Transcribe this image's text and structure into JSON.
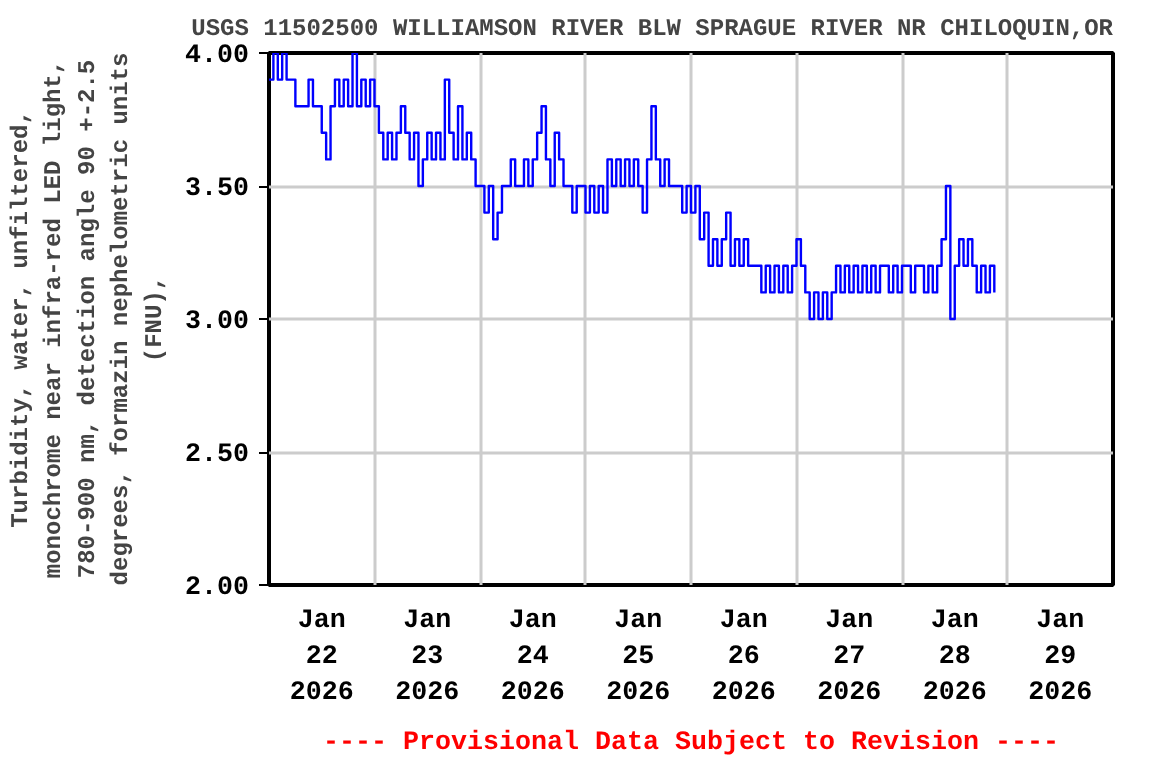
{
  "chart_data": {
    "type": "step",
    "title": "USGS 11502500 WILLIAMSON RIVER BLW SPRAGUE RIVER NR CHILOQUIN,OR",
    "ylabel": "Turbidity, water, unfiltered,\nmonochrome near infra-red LED light,\n780-900 nm, detection angle 90 +-2.5\ndegrees, formazin nephelometric units\n(FNU),",
    "annotations": [
      "---- Provisional Data Subject to Revision ----"
    ],
    "xlim": [
      "2026-01-22T00:00",
      "2026-01-30T00:00"
    ],
    "xticks": [
      {
        "value": "2026-01-22T00:00",
        "label": null
      },
      {
        "value": "2026-01-22T12:00",
        "label": "Jan\n22\n2026"
      },
      {
        "value": "2026-01-23T00:00",
        "label": null
      },
      {
        "value": "2026-01-23T12:00",
        "label": "Jan\n23\n2026"
      },
      {
        "value": "2026-01-24T00:00",
        "label": null
      },
      {
        "value": "2026-01-24T12:00",
        "label": "Jan\n24\n2026"
      },
      {
        "value": "2026-01-25T00:00",
        "label": null
      },
      {
        "value": "2026-01-25T12:00",
        "label": "Jan\n25\n2026"
      },
      {
        "value": "2026-01-26T00:00",
        "label": null
      },
      {
        "value": "2026-01-26T12:00",
        "label": "Jan\n26\n2026"
      },
      {
        "value": "2026-01-27T00:00",
        "label": null
      },
      {
        "value": "2026-01-27T12:00",
        "label": "Jan\n27\n2026"
      },
      {
        "value": "2026-01-28T00:00",
        "label": null
      },
      {
        "value": "2026-01-28T12:00",
        "label": "Jan\n28\n2026"
      },
      {
        "value": "2026-01-29T00:00",
        "label": null
      },
      {
        "value": "2026-01-29T12:00",
        "label": "Jan\n29\n2026"
      },
      {
        "value": "2026-01-30T00:00",
        "label": null
      }
    ],
    "ylim": [
      2.0,
      4.0
    ],
    "yticks": [
      {
        "value": 2.0,
        "label": "2.00"
      },
      {
        "value": 2.5,
        "label": "2.50"
      },
      {
        "value": 3.0,
        "label": "3.00"
      },
      {
        "value": 3.5,
        "label": "3.50"
      },
      {
        "value": 4.0,
        "label": "4.00"
      }
    ],
    "grid": true,
    "series": [
      {
        "color": "#0000ff",
        "x": [
          "2026-01-22T00:00",
          "2026-01-22T01:00",
          "2026-01-22T02:00",
          "2026-01-22T03:00",
          "2026-01-22T04:00",
          "2026-01-22T06:00",
          "2026-01-22T08:00",
          "2026-01-22T09:00",
          "2026-01-22T10:00",
          "2026-01-22T12:00",
          "2026-01-22T13:00",
          "2026-01-22T14:00",
          "2026-01-22T15:00",
          "2026-01-22T16:00",
          "2026-01-22T17:00",
          "2026-01-22T18:00",
          "2026-01-22T19:00",
          "2026-01-22T20:00",
          "2026-01-22T21:00",
          "2026-01-22T22:00",
          "2026-01-22T23:00",
          "2026-01-23T00:00",
          "2026-01-23T01:00",
          "2026-01-23T02:00",
          "2026-01-23T03:00",
          "2026-01-23T04:00",
          "2026-01-23T05:00",
          "2026-01-23T06:00",
          "2026-01-23T07:00",
          "2026-01-23T08:00",
          "2026-01-23T09:00",
          "2026-01-23T10:00",
          "2026-01-23T11:00",
          "2026-01-23T12:00",
          "2026-01-23T13:00",
          "2026-01-23T14:00",
          "2026-01-23T15:00",
          "2026-01-23T16:00",
          "2026-01-23T17:00",
          "2026-01-23T18:00",
          "2026-01-23T19:00",
          "2026-01-23T20:00",
          "2026-01-23T21:00",
          "2026-01-23T22:00",
          "2026-01-23T23:00",
          "2026-01-24T00:00",
          "2026-01-24T01:00",
          "2026-01-24T02:00",
          "2026-01-24T03:00",
          "2026-01-24T04:00",
          "2026-01-24T05:00",
          "2026-01-24T06:00",
          "2026-01-24T07:00",
          "2026-01-24T08:00",
          "2026-01-24T09:00",
          "2026-01-24T10:00",
          "2026-01-24T11:00",
          "2026-01-24T12:00",
          "2026-01-24T13:00",
          "2026-01-24T14:00",
          "2026-01-24T15:00",
          "2026-01-24T16:00",
          "2026-01-24T17:00",
          "2026-01-24T18:00",
          "2026-01-24T19:00",
          "2026-01-24T20:00",
          "2026-01-24T21:00",
          "2026-01-24T22:00",
          "2026-01-24T23:00",
          "2026-01-25T00:00",
          "2026-01-25T01:00",
          "2026-01-25T02:00",
          "2026-01-25T03:00",
          "2026-01-25T04:00",
          "2026-01-25T05:00",
          "2026-01-25T06:00",
          "2026-01-25T07:00",
          "2026-01-25T08:00",
          "2026-01-25T09:00",
          "2026-01-25T10:00",
          "2026-01-25T11:00",
          "2026-01-25T12:00",
          "2026-01-25T13:00",
          "2026-01-25T14:00",
          "2026-01-25T15:00",
          "2026-01-25T16:00",
          "2026-01-25T17:00",
          "2026-01-25T18:00",
          "2026-01-25T19:00",
          "2026-01-25T20:00",
          "2026-01-25T21:00",
          "2026-01-25T22:00",
          "2026-01-25T23:00",
          "2026-01-26T00:00",
          "2026-01-26T01:00",
          "2026-01-26T02:00",
          "2026-01-26T03:00",
          "2026-01-26T04:00",
          "2026-01-26T05:00",
          "2026-01-26T06:00",
          "2026-01-26T07:00",
          "2026-01-26T08:00",
          "2026-01-26T09:00",
          "2026-01-26T10:00",
          "2026-01-26T11:00",
          "2026-01-26T12:00",
          "2026-01-26T13:00",
          "2026-01-26T14:00",
          "2026-01-26T15:00",
          "2026-01-26T16:00",
          "2026-01-26T17:00",
          "2026-01-26T18:00",
          "2026-01-26T19:00",
          "2026-01-26T20:00",
          "2026-01-26T21:00",
          "2026-01-26T22:00",
          "2026-01-26T23:00",
          "2026-01-27T00:00",
          "2026-01-27T01:00",
          "2026-01-27T02:00",
          "2026-01-27T03:00",
          "2026-01-27T04:00",
          "2026-01-27T05:00",
          "2026-01-27T06:00",
          "2026-01-27T07:00",
          "2026-01-27T08:00",
          "2026-01-27T09:00",
          "2026-01-27T10:00",
          "2026-01-27T11:00",
          "2026-01-27T12:00",
          "2026-01-27T13:00",
          "2026-01-27T14:00",
          "2026-01-27T15:00",
          "2026-01-27T16:00",
          "2026-01-27T17:00",
          "2026-01-27T18:00",
          "2026-01-27T19:00",
          "2026-01-27T20:00",
          "2026-01-27T21:00",
          "2026-01-27T22:00",
          "2026-01-27T23:00",
          "2026-01-28T00:00",
          "2026-01-28T02:00",
          "2026-01-28T03:00",
          "2026-01-28T05:00",
          "2026-01-28T06:00",
          "2026-01-28T07:00",
          "2026-01-28T08:00",
          "2026-01-28T09:00",
          "2026-01-28T10:00",
          "2026-01-28T11:00",
          "2026-01-28T12:00",
          "2026-01-28T13:00",
          "2026-01-28T14:00",
          "2026-01-28T15:00",
          "2026-01-28T16:00",
          "2026-01-28T17:00",
          "2026-01-28T18:00",
          "2026-01-28T19:00",
          "2026-01-28T20:00",
          "2026-01-28T21:00"
        ],
        "values": [
          3.9,
          4.0,
          3.9,
          4.0,
          3.9,
          3.8,
          3.8,
          3.9,
          3.8,
          3.7,
          3.6,
          3.8,
          3.9,
          3.8,
          3.9,
          3.8,
          4.0,
          3.8,
          3.9,
          3.8,
          3.9,
          3.8,
          3.7,
          3.6,
          3.7,
          3.6,
          3.7,
          3.8,
          3.7,
          3.6,
          3.7,
          3.5,
          3.6,
          3.7,
          3.6,
          3.7,
          3.6,
          3.9,
          3.7,
          3.6,
          3.8,
          3.6,
          3.7,
          3.6,
          3.5,
          3.5,
          3.4,
          3.5,
          3.3,
          3.4,
          3.5,
          3.5,
          3.6,
          3.5,
          3.5,
          3.6,
          3.5,
          3.6,
          3.7,
          3.8,
          3.6,
          3.5,
          3.7,
          3.6,
          3.5,
          3.5,
          3.4,
          3.5,
          3.5,
          3.4,
          3.5,
          3.4,
          3.5,
          3.4,
          3.6,
          3.5,
          3.6,
          3.5,
          3.6,
          3.5,
          3.6,
          3.5,
          3.4,
          3.6,
          3.8,
          3.6,
          3.5,
          3.6,
          3.5,
          3.5,
          3.5,
          3.4,
          3.5,
          3.4,
          3.5,
          3.3,
          3.4,
          3.2,
          3.3,
          3.2,
          3.3,
          3.4,
          3.2,
          3.3,
          3.2,
          3.3,
          3.2,
          3.2,
          3.2,
          3.1,
          3.2,
          3.1,
          3.2,
          3.1,
          3.2,
          3.1,
          3.2,
          3.3,
          3.2,
          3.1,
          3.0,
          3.1,
          3.0,
          3.1,
          3.0,
          3.1,
          3.2,
          3.1,
          3.2,
          3.1,
          3.2,
          3.1,
          3.2,
          3.1,
          3.2,
          3.1,
          3.2,
          3.2,
          3.1,
          3.2,
          3.1,
          3.2,
          3.1,
          3.2,
          3.1,
          3.2,
          3.1,
          3.2,
          3.3,
          3.5,
          3.0,
          3.2,
          3.3,
          3.2,
          3.3,
          3.2,
          3.1,
          3.2,
          3.1,
          3.2,
          3.1
        ]
      }
    ]
  }
}
